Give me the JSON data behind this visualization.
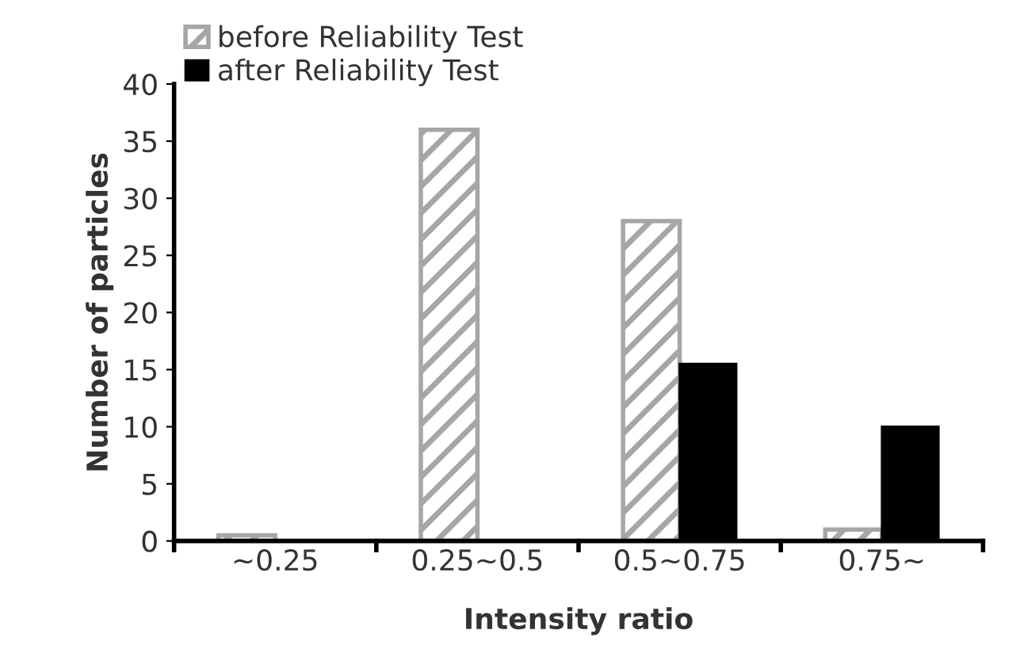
{
  "chart_data": {
    "type": "bar",
    "xlabel": "Intensity ratio",
    "ylabel": "Number of particles",
    "categories": [
      "~0.25",
      "0.25~0.5",
      "0.5~0.75",
      "0.75~"
    ],
    "series": [
      {
        "name": "before Reliability Test",
        "color": "#a6a6a6",
        "values": [
          0.5,
          36,
          28,
          1
        ]
      },
      {
        "name": "after Reliability Test",
        "color": "#000000",
        "values": [
          0,
          0,
          15.5,
          10
        ]
      }
    ],
    "ylim": [
      0,
      40
    ],
    "yticks": [
      0,
      5,
      10,
      15,
      20,
      25,
      30,
      35,
      40
    ],
    "grid": false,
    "legend": "top left"
  }
}
